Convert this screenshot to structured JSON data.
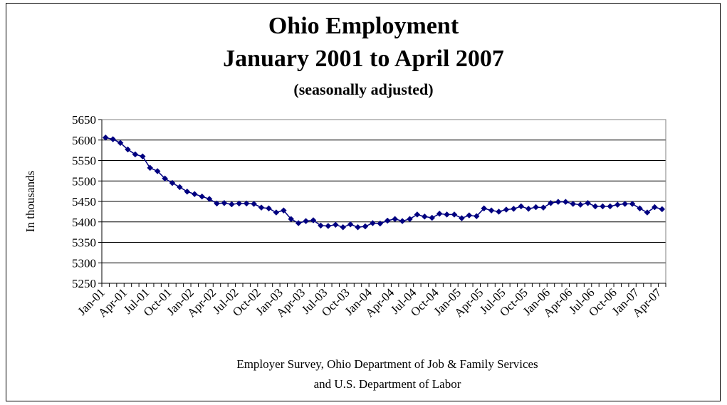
{
  "chart_data": {
    "type": "line",
    "title": "Ohio Employment",
    "subtitle": "January 2001 to April 2007",
    "subtitle2": "(seasonally adjusted)",
    "ylabel": "In thousands",
    "xlabel": "",
    "ylim": [
      5250,
      5650
    ],
    "yticks": [
      5250,
      5300,
      5350,
      5400,
      5450,
      5500,
      5550,
      5600,
      5650
    ],
    "grid": true,
    "legend": "none",
    "marker": "diamond",
    "color": "#000080",
    "tick_labels": [
      "Jan-01",
      "Apr-01",
      "Jul-01",
      "Oct-01",
      "Jan-02",
      "Apr-02",
      "Jul-02",
      "Oct-02",
      "Jan-03",
      "Apr-03",
      "Jul-03",
      "Oct-03",
      "Jan-04",
      "Apr-04",
      "Jul-04",
      "Oct-04",
      "Jan-05",
      "Apr-05",
      "Jul-05",
      "Oct-05",
      "Jan-06",
      "Apr-06",
      "Jul-06",
      "Oct-06",
      "Jan-07",
      "Apr-07"
    ],
    "series": [
      {
        "values": [
          5606,
          5602,
          5593,
          5577,
          5565,
          5560,
          5532,
          5524,
          5506,
          5495,
          5485,
          5474,
          5468,
          5462,
          5456,
          5445,
          5446,
          5443,
          5445,
          5445,
          5444,
          5435,
          5433,
          5423,
          5428,
          5407,
          5397,
          5402,
          5404,
          5391,
          5390,
          5393,
          5387,
          5394,
          5387,
          5389,
          5397,
          5396,
          5403,
          5407,
          5402,
          5407,
          5418,
          5413,
          5410,
          5420,
          5418,
          5418,
          5409,
          5416,
          5414,
          5433,
          5428,
          5425,
          5430,
          5432,
          5438,
          5432,
          5436,
          5435,
          5446,
          5449,
          5449,
          5444,
          5442,
          5446,
          5438,
          5438,
          5438,
          5442,
          5444,
          5444,
          5433,
          5423,
          5436,
          5431
        ]
      }
    ]
  },
  "source": {
    "line1": "Employer Survey, Ohio Department of Job & Family Services",
    "line2": "and U.S. Department of Labor"
  }
}
